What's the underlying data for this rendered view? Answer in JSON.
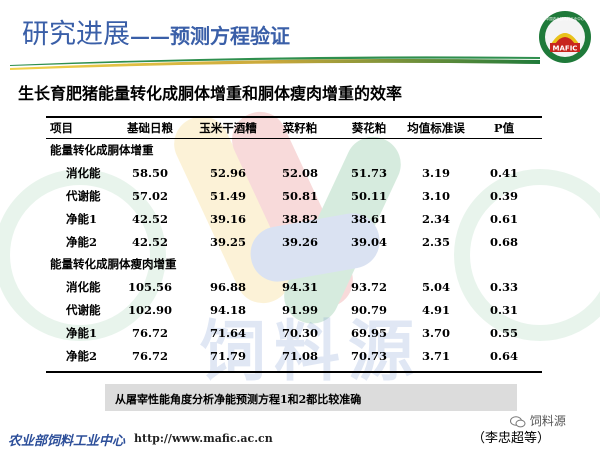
{
  "header": {
    "title_main": "研究进展",
    "title_sub": "——预测方程验证"
  },
  "logo": {
    "text_top": "中国农业部饲料工业中心",
    "text_main": "MAFIC",
    "colors": [
      "#c8261e",
      "#e9c21a",
      "#1f7a3a",
      "#ffffff"
    ]
  },
  "main_title": "生长育肥猪能量转化成胴体增重和胴体瘦肉增重的效率",
  "table": {
    "headers": [
      "项目",
      "基础日粮",
      "玉米干酒糟",
      "菜籽粕",
      "葵花粕",
      "均值标准误",
      "P值"
    ],
    "sections": [
      {
        "title": "能量转化成胴体增重",
        "rows": [
          {
            "label": "消化能",
            "values": [
              "58.50",
              "52.96",
              "52.08",
              "51.73",
              "3.19",
              "0.41"
            ]
          },
          {
            "label": "代谢能",
            "values": [
              "57.02",
              "51.49",
              "50.81",
              "50.11",
              "3.10",
              "0.39"
            ]
          },
          {
            "label": "净能1",
            "values": [
              "42.52",
              "39.16",
              "38.82",
              "38.61",
              "2.34",
              "0.61"
            ]
          },
          {
            "label": "净能2",
            "values": [
              "42.52",
              "39.25",
              "39.26",
              "39.04",
              "2.35",
              "0.68"
            ]
          }
        ]
      },
      {
        "title": "能量转化成胴体瘦肉增重",
        "rows": [
          {
            "label": "消化能",
            "values": [
              "105.56",
              "96.88",
              "94.31",
              "93.72",
              "5.04",
              "0.33"
            ]
          },
          {
            "label": "代谢能",
            "values": [
              "102.90",
              "94.18",
              "91.99",
              "90.79",
              "4.91",
              "0.31"
            ]
          },
          {
            "label": "净能1",
            "values": [
              "76.72",
              "71.64",
              "70.30",
              "69.95",
              "3.70",
              "0.55"
            ]
          },
          {
            "label": "净能2",
            "values": [
              "76.72",
              "71.79",
              "71.08",
              "70.73",
              "3.71",
              "0.64"
            ]
          }
        ]
      }
    ]
  },
  "footer_banner": "从屠宰性能角度分析净能预测方程1和2都比较准确",
  "org_name": "农业部饲料工业中心",
  "org_url": "http://www.mafic.ac.cn",
  "author": "（李忠超等）",
  "wechat_label": "饲料源",
  "watermark": {
    "text": "饲料源",
    "colors": [
      "#e05a5a",
      "#f2c94c",
      "#4aa86b",
      "#5b7fc7"
    ]
  }
}
